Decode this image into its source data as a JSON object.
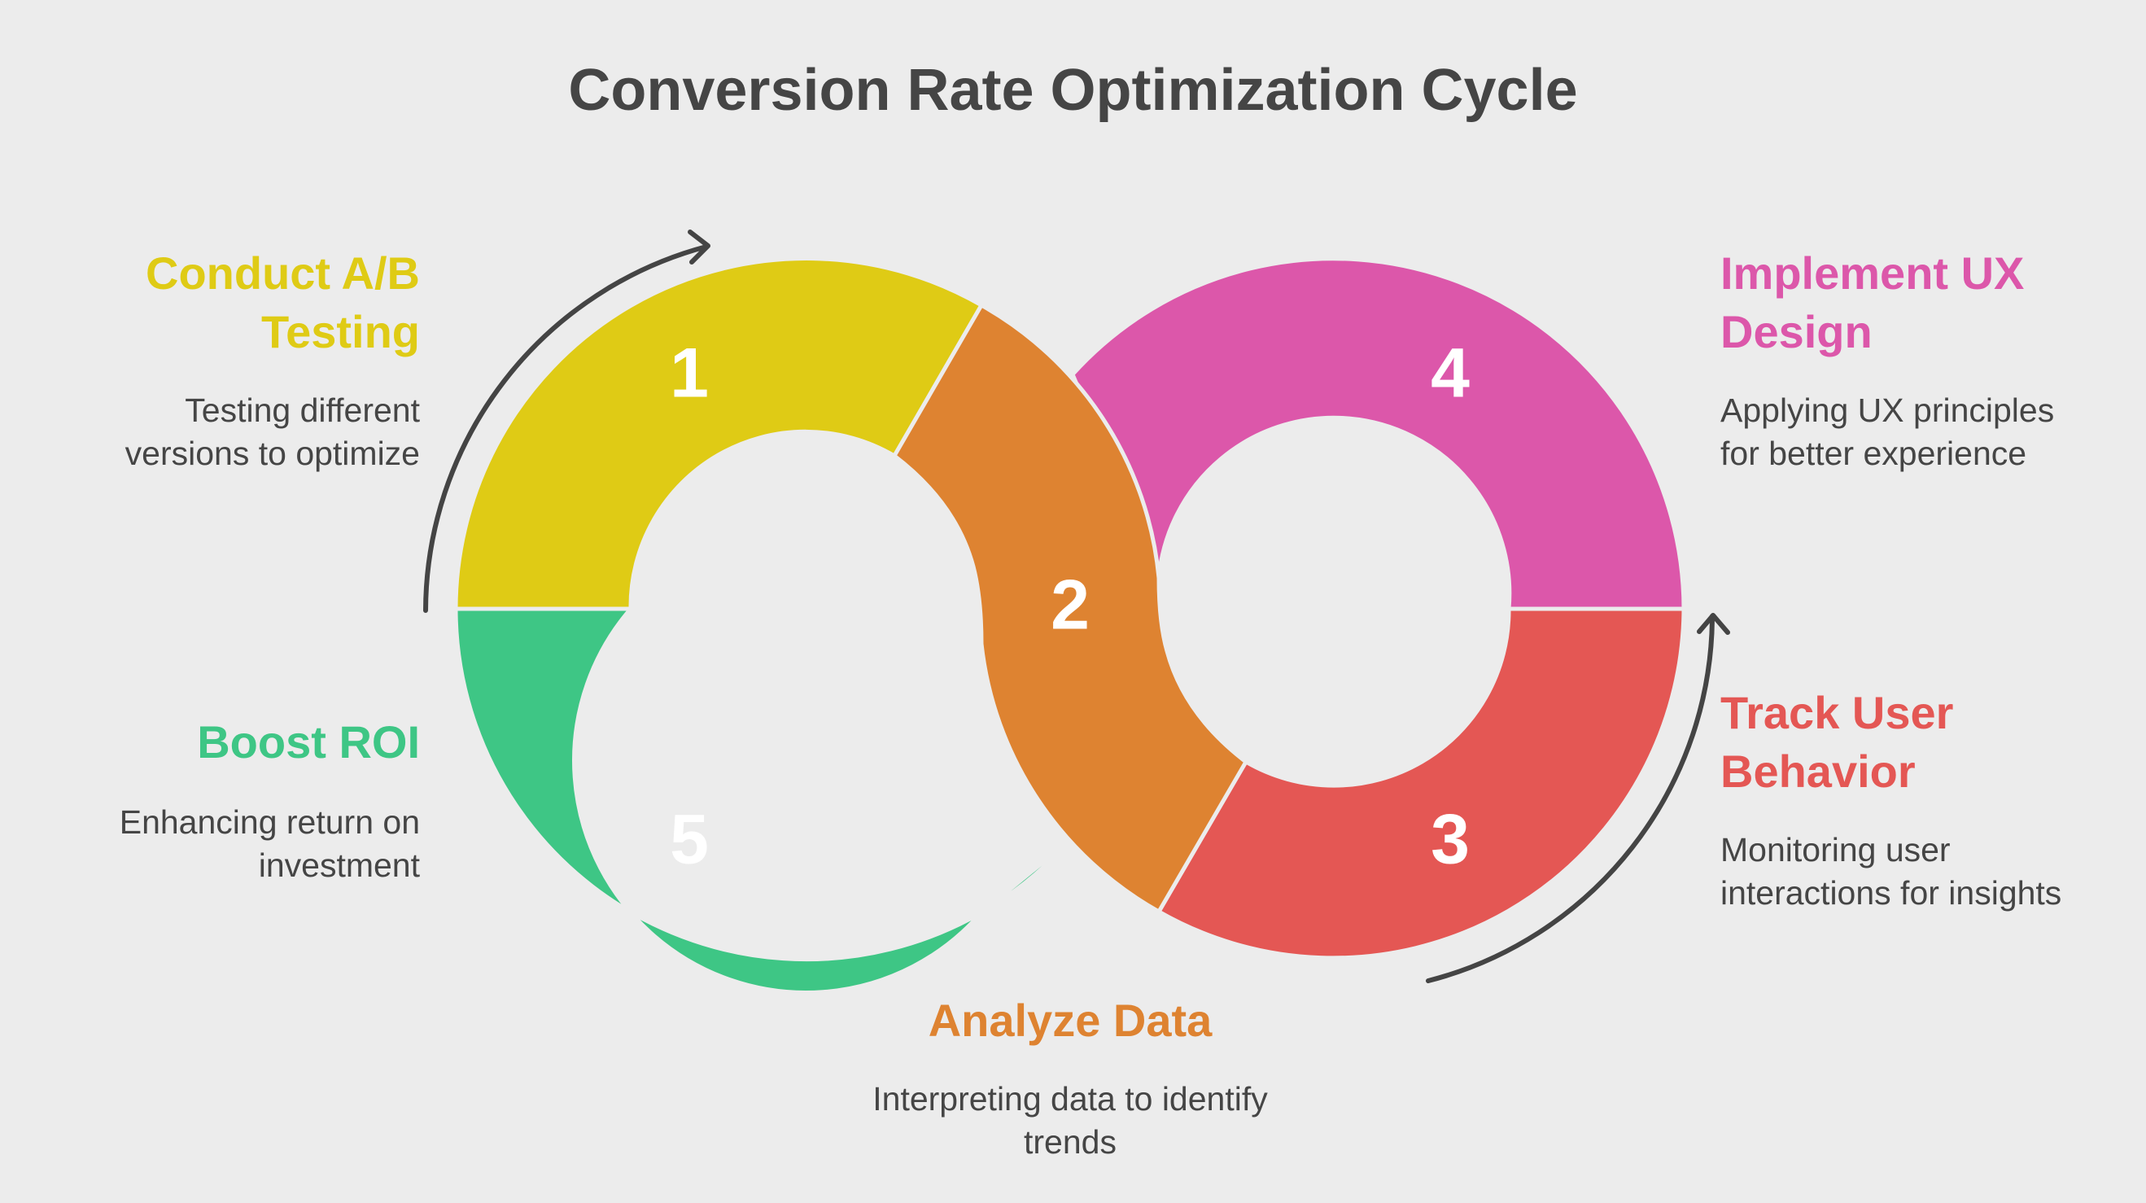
{
  "title": "Conversion Rate Optimization Cycle",
  "steps": [
    {
      "number": "1",
      "title_lines": [
        "Conduct A/B",
        "Testing"
      ],
      "desc_lines": [
        "Testing different",
        "versions to optimize"
      ],
      "color": "#dfcb15"
    },
    {
      "number": "2",
      "title_lines": [
        "Analyze Data"
      ],
      "desc_lines": [
        "Interpreting data to identify",
        "trends"
      ],
      "color": "#de8331"
    },
    {
      "number": "3",
      "title_lines": [
        "Track User",
        "Behavior"
      ],
      "desc_lines": [
        "Monitoring user",
        "interactions for insights"
      ],
      "color": "#e45754"
    },
    {
      "number": "4",
      "title_lines": [
        "Implement UX",
        "Design"
      ],
      "desc_lines": [
        "Applying UX principles",
        "for better experience"
      ],
      "color": "#dc57aa"
    },
    {
      "number": "5",
      "title_lines": [
        "Boost ROI"
      ],
      "desc_lines": [
        "Enhancing return on",
        "investment"
      ],
      "color": "#3ec685"
    }
  ],
  "icons": [
    "cycle-arrow-icon"
  ]
}
